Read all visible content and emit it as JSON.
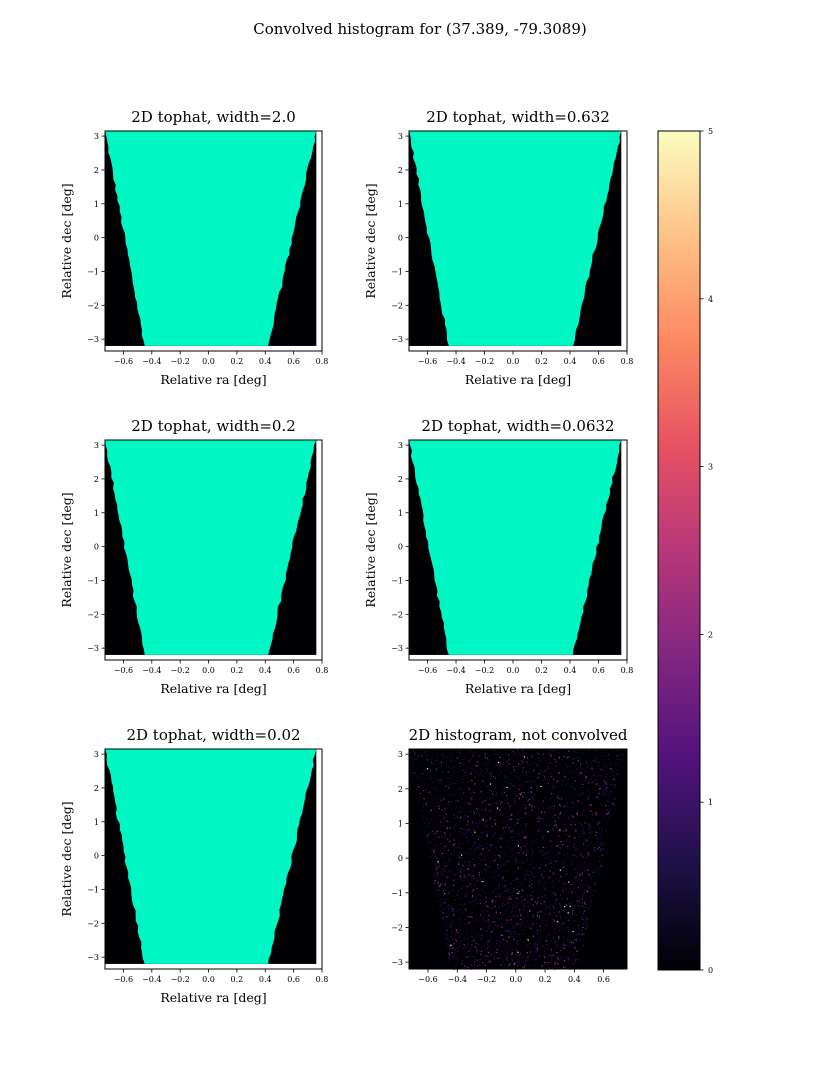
{
  "figure_title": "Convolved histogram for (37.389, -79.3089)",
  "colors": {
    "tophat_fill": "#00f7c3",
    "background": "#000004",
    "colormap": [
      "#000004",
      "#1d1147",
      "#51127c",
      "#822681",
      "#b73779",
      "#e75263",
      "#fc8961",
      "#fec287",
      "#fcfdbf"
    ]
  },
  "chart_data": [
    {
      "type": "heatmap",
      "title": "2D tophat, width=2.0",
      "xlabel": "Relative ra [deg]",
      "ylabel": "Relative dec [deg]",
      "xticks": [
        -0.6,
        -0.4,
        -0.2,
        0.0,
        0.2,
        0.4,
        0.6,
        0.8
      ],
      "xtick_labels": [
        "−0.6",
        "−0.4",
        "−0.2",
        "0.0",
        "0.2",
        "0.4",
        "0.6",
        "0.8"
      ],
      "yticks": [
        -3,
        -2,
        -1,
        0,
        1,
        2,
        3
      ],
      "ytick_labels": [
        "−3",
        "−2",
        "−1",
        "0",
        "1",
        "2",
        "3"
      ],
      "xlim": [
        -0.73,
        0.8
      ],
      "ylim": [
        -3.35,
        3.15
      ],
      "data_extent": {
        "x": [
          -0.73,
          0.76
        ],
        "y": [
          -3.2,
          3.15
        ]
      },
      "footprint": {
        "top": [
          -0.73,
          0.76
        ],
        "bottom": [
          -0.45,
          0.42
        ]
      },
      "value": "uniform inside footprint, 0 outside"
    },
    {
      "type": "heatmap",
      "title": "2D tophat, width=0.632",
      "xlabel": "Relative ra [deg]",
      "ylabel": "Relative dec [deg]",
      "xticks": [
        -0.6,
        -0.4,
        -0.2,
        0.0,
        0.2,
        0.4,
        0.6,
        0.8
      ],
      "xtick_labels": [
        "−0.6",
        "−0.4",
        "−0.2",
        "0.0",
        "0.2",
        "0.4",
        "0.6",
        "0.8"
      ],
      "yticks": [
        -3,
        -2,
        -1,
        0,
        1,
        2,
        3
      ],
      "ytick_labels": [
        "−3",
        "−2",
        "−1",
        "0",
        "1",
        "2",
        "3"
      ],
      "xlim": [
        -0.73,
        0.8
      ],
      "ylim": [
        -3.35,
        3.15
      ],
      "data_extent": {
        "x": [
          -0.73,
          0.76
        ],
        "y": [
          -3.2,
          3.15
        ]
      },
      "footprint": {
        "top": [
          -0.73,
          0.76
        ],
        "bottom": [
          -0.45,
          0.42
        ]
      },
      "value": "uniform inside footprint, 0 outside"
    },
    {
      "type": "heatmap",
      "title": "2D tophat, width=0.2",
      "xlabel": "Relative ra [deg]",
      "ylabel": "Relative dec [deg]",
      "xticks": [
        -0.6,
        -0.4,
        -0.2,
        0.0,
        0.2,
        0.4,
        0.6,
        0.8
      ],
      "xtick_labels": [
        "−0.6",
        "−0.4",
        "−0.2",
        "0.0",
        "0.2",
        "0.4",
        "0.6",
        "0.8"
      ],
      "yticks": [
        -3,
        -2,
        -1,
        0,
        1,
        2,
        3
      ],
      "ytick_labels": [
        "−3",
        "−2",
        "−1",
        "0",
        "1",
        "2",
        "3"
      ],
      "xlim": [
        -0.73,
        0.8
      ],
      "ylim": [
        -3.35,
        3.15
      ],
      "data_extent": {
        "x": [
          -0.73,
          0.76
        ],
        "y": [
          -3.2,
          3.15
        ]
      },
      "footprint": {
        "top": [
          -0.73,
          0.76
        ],
        "bottom": [
          -0.45,
          0.42
        ]
      },
      "value": "uniform inside footprint, 0 outside"
    },
    {
      "type": "heatmap",
      "title": "2D tophat, width=0.0632",
      "xlabel": "Relative ra [deg]",
      "ylabel": "Relative dec [deg]",
      "xticks": [
        -0.6,
        -0.4,
        -0.2,
        0.0,
        0.2,
        0.4,
        0.6,
        0.8
      ],
      "xtick_labels": [
        "−0.6",
        "−0.4",
        "−0.2",
        "0.0",
        "0.2",
        "0.4",
        "0.6",
        "0.8"
      ],
      "yticks": [
        -3,
        -2,
        -1,
        0,
        1,
        2,
        3
      ],
      "ytick_labels": [
        "−3",
        "−2",
        "−1",
        "0",
        "1",
        "2",
        "3"
      ],
      "xlim": [
        -0.73,
        0.8
      ],
      "ylim": [
        -3.35,
        3.15
      ],
      "data_extent": {
        "x": [
          -0.73,
          0.76
        ],
        "y": [
          -3.2,
          3.15
        ]
      },
      "footprint": {
        "top": [
          -0.73,
          0.76
        ],
        "bottom": [
          -0.45,
          0.42
        ]
      },
      "value": "uniform inside footprint, 0 outside"
    },
    {
      "type": "heatmap",
      "title": "2D tophat, width=0.02",
      "xlabel": "Relative ra [deg]",
      "ylabel": "Relative dec [deg]",
      "xticks": [
        -0.6,
        -0.4,
        -0.2,
        0.0,
        0.2,
        0.4,
        0.6,
        0.8
      ],
      "xtick_labels": [
        "−0.6",
        "−0.4",
        "−0.2",
        "0.0",
        "0.2",
        "0.4",
        "0.6",
        "0.8"
      ],
      "yticks": [
        -3,
        -2,
        -1,
        0,
        1,
        2,
        3
      ],
      "ytick_labels": [
        "−3",
        "−2",
        "−1",
        "0",
        "1",
        "2",
        "3"
      ],
      "xlim": [
        -0.73,
        0.8
      ],
      "ylim": [
        -3.35,
        3.15
      ],
      "data_extent": {
        "x": [
          -0.73,
          0.76
        ],
        "y": [
          -3.2,
          3.15
        ]
      },
      "footprint": {
        "top": [
          -0.73,
          0.76
        ],
        "bottom": [
          -0.45,
          0.42
        ]
      },
      "value": "uniform inside footprint, 0 outside"
    },
    {
      "type": "heatmap",
      "title": "2D histogram, not convolved",
      "xlabel": "",
      "ylabel": "",
      "xticks": [
        -0.6,
        -0.4,
        -0.2,
        0.0,
        0.2,
        0.4,
        0.6
      ],
      "xtick_labels": [
        "−0.6",
        "−0.4",
        "−0.2",
        "0.0",
        "0.2",
        "0.4",
        "0.6"
      ],
      "yticks": [
        -3,
        -2,
        -1,
        0,
        1,
        2,
        3
      ],
      "ytick_labels": [
        "−3",
        "−2",
        "−1",
        "0",
        "1",
        "2",
        "3"
      ],
      "xlim": [
        -0.73,
        0.76
      ],
      "ylim": [
        -3.2,
        3.15
      ],
      "footprint": {
        "top": [
          -0.73,
          0.76
        ],
        "bottom": [
          -0.45,
          0.42
        ]
      },
      "value": "sparse counts 0-5 inside footprint"
    }
  ],
  "colorbar": {
    "vmin": 0,
    "vmax": 5,
    "ticks": [
      0,
      1,
      2,
      3,
      4,
      5
    ],
    "tick_labels": [
      "0",
      "1",
      "2",
      "3",
      "4",
      "5"
    ],
    "cmap": "magma"
  }
}
